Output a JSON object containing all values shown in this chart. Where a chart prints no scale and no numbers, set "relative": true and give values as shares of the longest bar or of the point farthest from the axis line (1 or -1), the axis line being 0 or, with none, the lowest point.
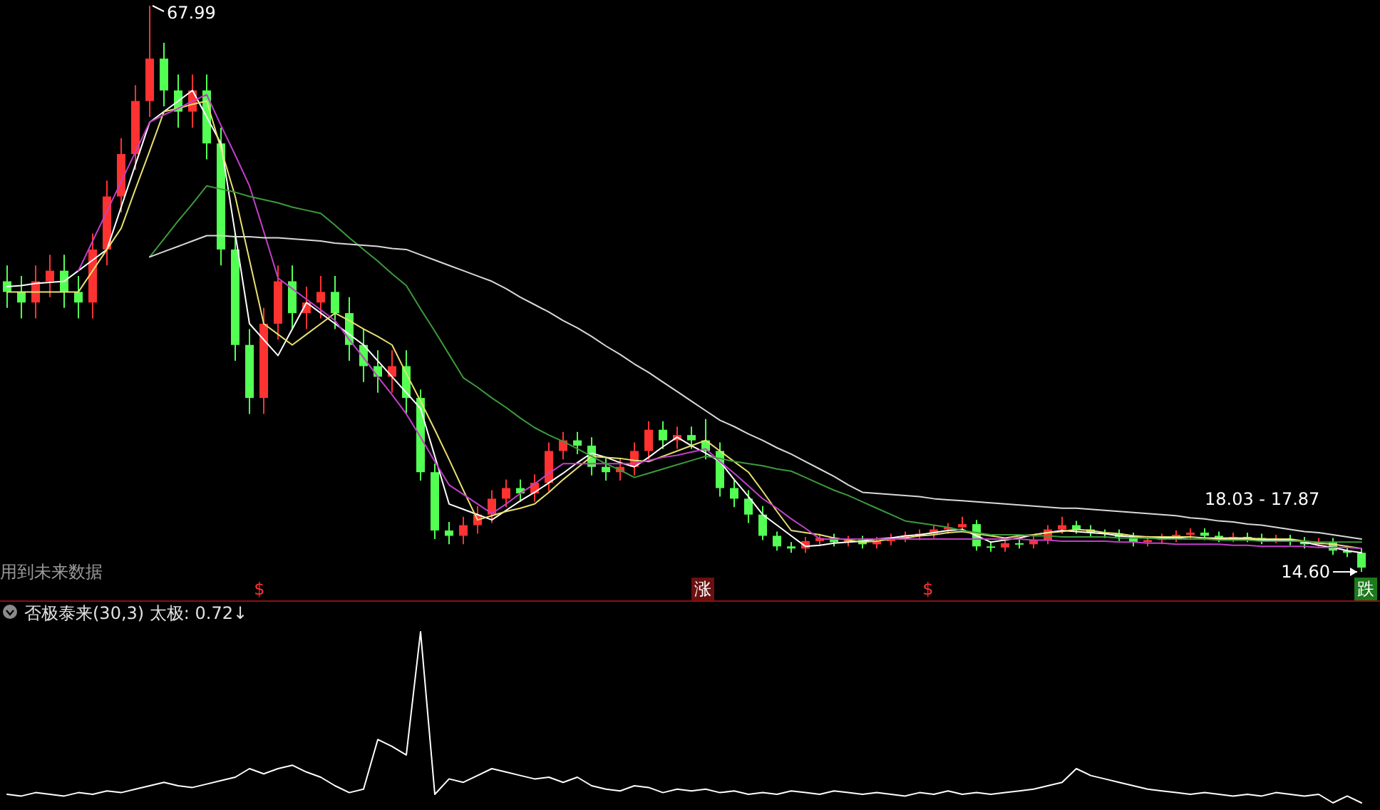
{
  "chart_data": [
    {
      "type": "candlestick",
      "categories": [
        null,
        null,
        null,
        null,
        null,
        null,
        null,
        null,
        null,
        null,
        null,
        null,
        null,
        null,
        null,
        null,
        null,
        null,
        null,
        null,
        null,
        null,
        null,
        null,
        null,
        null,
        null,
        null,
        null,
        null,
        null,
        null,
        null,
        null,
        null,
        null,
        null,
        null,
        null,
        null,
        null,
        null,
        null,
        null,
        null,
        null,
        null,
        null,
        null,
        null,
        null,
        null,
        null,
        null,
        null,
        null,
        null,
        null,
        null,
        null,
        null,
        null,
        null,
        null,
        null,
        null,
        null,
        null,
        null,
        null,
        null,
        null,
        null,
        null,
        null,
        null,
        null,
        null,
        null,
        null,
        null,
        null,
        null,
        null,
        null,
        null,
        null,
        null,
        null,
        null,
        null,
        null,
        null,
        null,
        null,
        null
      ],
      "ohlc": [
        [
          42,
          43.5,
          39.5,
          41
        ],
        [
          41,
          42.5,
          38.5,
          40
        ],
        [
          40,
          43.5,
          38.5,
          42
        ],
        [
          42,
          44.5,
          40.5,
          43
        ],
        [
          43,
          44.5,
          39.5,
          41
        ],
        [
          41,
          42.5,
          38.5,
          40
        ],
        [
          40,
          46.5,
          38.5,
          45
        ],
        [
          45,
          51.5,
          43.5,
          50
        ],
        [
          50,
          55.5,
          48.5,
          54
        ],
        [
          54,
          60.5,
          52.5,
          59
        ],
        [
          59,
          67.99,
          57.5,
          63
        ],
        [
          63,
          64.5,
          58.5,
          60
        ],
        [
          60,
          61.5,
          56.5,
          58
        ],
        [
          58,
          61.5,
          56.5,
          60
        ],
        [
          60,
          61.5,
          53.5,
          55
        ],
        [
          55,
          56.5,
          43.5,
          45
        ],
        [
          45,
          46.5,
          34.5,
          36
        ],
        [
          36,
          37.5,
          29.5,
          31
        ],
        [
          31,
          39.5,
          29.5,
          38
        ],
        [
          38,
          43.5,
          36.5,
          42
        ],
        [
          42,
          43.5,
          37.5,
          39
        ],
        [
          39,
          41.5,
          37.5,
          40
        ],
        [
          40,
          42.5,
          38.5,
          41
        ],
        [
          41,
          42.5,
          37.5,
          39
        ],
        [
          39,
          40.5,
          34.5,
          36
        ],
        [
          36,
          37.5,
          32.5,
          34
        ],
        [
          34,
          35.5,
          31.5,
          33
        ],
        [
          33,
          35.5,
          31.5,
          34
        ],
        [
          34,
          35.5,
          29.5,
          31
        ],
        [
          31,
          31.8,
          23.2,
          24
        ],
        [
          24,
          24.8,
          17.7,
          18.5
        ],
        [
          18.5,
          19.3,
          17.2,
          18
        ],
        [
          18,
          19.8,
          17.2,
          19
        ],
        [
          19,
          20.8,
          18.2,
          20
        ],
        [
          20,
          22.3,
          19.2,
          21.5
        ],
        [
          21.5,
          23.3,
          20.7,
          22.5
        ],
        [
          22.5,
          23.3,
          21.2,
          22
        ],
        [
          22,
          23.8,
          21.2,
          23
        ],
        [
          23,
          26.8,
          22.2,
          26
        ],
        [
          26,
          27.8,
          25.2,
          27
        ],
        [
          27,
          27.8,
          25.7,
          26.5
        ],
        [
          26.5,
          27.3,
          23.7,
          24.5
        ],
        [
          24.5,
          25.3,
          23.2,
          24
        ],
        [
          24,
          25.3,
          23.2,
          24.5
        ],
        [
          24.5,
          26.8,
          23.7,
          26
        ],
        [
          26,
          28.8,
          25.2,
          28
        ],
        [
          28,
          28.8,
          26.2,
          27
        ],
        [
          27,
          28.3,
          26.2,
          27.5
        ],
        [
          27.5,
          28.3,
          26.2,
          27
        ],
        [
          27,
          29,
          25.2,
          26
        ],
        [
          26,
          26.8,
          21.7,
          22.5
        ],
        [
          22.5,
          23.3,
          20.7,
          21.5
        ],
        [
          21.5,
          22.3,
          19.2,
          20
        ],
        [
          20,
          20.8,
          17.6,
          18
        ],
        [
          18,
          18.4,
          16.6,
          17
        ],
        [
          17,
          17.4,
          16.4,
          16.8
        ],
        [
          16.8,
          17.9,
          16.4,
          17.5
        ],
        [
          17.5,
          18.2,
          17.1,
          17.8
        ],
        [
          17.8,
          18.2,
          17,
          17.4
        ],
        [
          17.4,
          18,
          17,
          17.6
        ],
        [
          17.6,
          18,
          16.8,
          17.2
        ],
        [
          17.2,
          17.9,
          16.8,
          17.5
        ],
        [
          17.5,
          18.2,
          17.1,
          17.8
        ],
        [
          17.8,
          18.4,
          17.4,
          18
        ],
        [
          18,
          18.6,
          17.6,
          18.2
        ],
        [
          18.2,
          19,
          17.8,
          18.6
        ],
        [
          18.6,
          19.2,
          18.2,
          18.8
        ],
        [
          18.8,
          19.8,
          18.4,
          19.1
        ],
        [
          19.1,
          19.5,
          16.6,
          17
        ],
        [
          17,
          17.4,
          16.5,
          16.9
        ],
        [
          16.9,
          17.7,
          16.5,
          17.3
        ],
        [
          17.3,
          17.7,
          16.8,
          17.2
        ],
        [
          17.2,
          18,
          16.8,
          17.6
        ],
        [
          17.6,
          19,
          17.2,
          18.6
        ],
        [
          18.6,
          19.8,
          18.2,
          19
        ],
        [
          19,
          19.4,
          18.2,
          18.6
        ],
        [
          18.6,
          19,
          17.9,
          18.3
        ],
        [
          18.3,
          18.6,
          17.8,
          18.2
        ],
        [
          18.2,
          18.6,
          17.5,
          17.9
        ],
        [
          17.9,
          18.3,
          17,
          17.4
        ],
        [
          17.4,
          18,
          17,
          17.6
        ],
        [
          17.6,
          18.2,
          17.2,
          17.8
        ],
        [
          17.8,
          18.5,
          17.4,
          18.1
        ],
        [
          18.1,
          18.7,
          17.7,
          18.3
        ],
        [
          18.3,
          18.7,
          17.6,
          18
        ],
        [
          18,
          18.4,
          17.4,
          17.8
        ],
        [
          17.8,
          18.3,
          17.4,
          17.9
        ],
        [
          17.9,
          18.3,
          17.4,
          17.8
        ],
        [
          17.8,
          18.2,
          17.2,
          17.6
        ],
        [
          17.6,
          18.1,
          17.3,
          17.7
        ],
        [
          17.7,
          18.1,
          17.1,
          17.5
        ],
        [
          17.5,
          17.9,
          16.8,
          17.2
        ],
        [
          17.2,
          17.8,
          17,
          17.4
        ],
        [
          17.4,
          17.8,
          16.2,
          16.6
        ],
        [
          16.6,
          17,
          16,
          16.4
        ],
        [
          16.4,
          16.8,
          14.6,
          15
        ]
      ],
      "series": [
        {
          "type": "line",
          "color": "#ffffff",
          "values": [
            41.5,
            41.6,
            41.8,
            41.9,
            42,
            43,
            44,
            45,
            49,
            53,
            57,
            58,
            59,
            60,
            57.5,
            55,
            46.5,
            38,
            36.5,
            35,
            37.5,
            40,
            39,
            38,
            37,
            36,
            34.5,
            33,
            31.5,
            30,
            25.5,
            21,
            20.5,
            20,
            19.5,
            20.4,
            21.3,
            22.1,
            23,
            23.9,
            24.9,
            25.8,
            25.4,
            24.9,
            24.5,
            25.4,
            26.4,
            27.3,
            26.5,
            25.8,
            25,
            23.3,
            21.7,
            20,
            19,
            18,
            17,
            17.1,
            17.3,
            17.4,
            17.5,
            17.7,
            17.8,
            18,
            18.1,
            18.3,
            18.5,
            18.6,
            18,
            17.4,
            17.6,
            17.8,
            18.1,
            18.3,
            18.5,
            18.4,
            18.3,
            18.2,
            18,
            17.9,
            17.8,
            17.8,
            17.8,
            17.7,
            17.7,
            17.7,
            17.7,
            17.7,
            17.6,
            17.6,
            17.6,
            17.4,
            17.1,
            16.9,
            16.6,
            16.4
          ]
        },
        {
          "type": "line",
          "color": "#e8e070",
          "values": [
            41,
            41,
            41,
            41,
            41,
            41,
            43,
            45,
            47,
            50.7,
            54.3,
            58,
            58.3,
            58.7,
            59,
            54.5,
            50,
            44,
            38,
            37,
            36,
            37,
            38,
            39,
            38.3,
            37.5,
            36.8,
            36,
            33.3,
            30.7,
            28,
            25.2,
            22.3,
            19.5,
            19.9,
            20.3,
            20.6,
            21,
            22.1,
            23.3,
            24.4,
            25.5,
            25.4,
            25.3,
            25.1,
            25,
            25.5,
            26,
            26.5,
            27,
            26,
            25,
            24,
            22.2,
            20.3,
            18.5,
            18.3,
            18.1,
            17.8,
            17.6,
            17.4,
            17.5,
            17.7,
            17.8,
            18,
            18.1,
            18.3,
            18.4,
            18.2,
            18,
            17.8,
            18,
            18.1,
            18.3,
            18.4,
            18.6,
            18.5,
            18.3,
            18.2,
            18,
            17.9,
            17.9,
            17.9,
            17.9,
            17.8,
            17.8,
            17.8,
            17.8,
            17.7,
            17.7,
            17.7,
            17.5,
            17.3,
            17.2,
            17,
            16.8
          ]
        },
        {
          "type": "line",
          "color": "#c040c8",
          "values": [
            null,
            null,
            null,
            null,
            null,
            43,
            45.8,
            48.6,
            51.4,
            54.2,
            57,
            57.7,
            58.3,
            59,
            59.6,
            56.7,
            53.9,
            51,
            46.7,
            42.3,
            41.3,
            40.3,
            39.3,
            38.3,
            36.5,
            34.8,
            33,
            31.3,
            29.5,
            27.3,
            25,
            22.8,
            21.9,
            21,
            20.1,
            21,
            22,
            22.9,
            23.9,
            24.8,
            24.8,
            24.8,
            24.8,
            24.8,
            24.8,
            25.1,
            25.4,
            25.6,
            25.9,
            26.2,
            25,
            23.9,
            22.7,
            21.5,
            20.6,
            19.6,
            18.7,
            17.7,
            17.7,
            17.7,
            17.7,
            17.7,
            17.7,
            17.7,
            17.7,
            17.7,
            17.7,
            17.7,
            17.7,
            17.7,
            17.7,
            17.7,
            17.6,
            17.6,
            17.5,
            17.5,
            17.5,
            17.5,
            17.4,
            17.4,
            17.3,
            17.3,
            17.2,
            17.2,
            17.2,
            17.2,
            17.1,
            17.1,
            17,
            17,
            17,
            17,
            16.9,
            16.9,
            16.9,
            16.8
          ]
        },
        {
          "type": "line",
          "color": "#3c9a3c",
          "values": [
            null,
            null,
            null,
            null,
            null,
            null,
            null,
            null,
            null,
            null,
            44.3,
            46,
            47.7,
            49.3,
            51,
            50.7,
            50.4,
            50,
            49.7,
            49.4,
            49,
            48.7,
            48.4,
            47.3,
            46.1,
            45,
            43.9,
            42.7,
            41.6,
            39.4,
            37.3,
            35.1,
            32.9,
            32,
            31,
            30.1,
            29.1,
            28.2,
            27.5,
            26.9,
            26.2,
            25.5,
            24.8,
            24.2,
            23.5,
            23.9,
            24.3,
            24.7,
            25.1,
            25.5,
            25.3,
            25,
            24.8,
            24.6,
            24.3,
            24.1,
            23.5,
            22.9,
            22.3,
            21.8,
            21.2,
            20.6,
            20,
            19.4,
            19.2,
            19,
            18.8,
            18.5,
            18.3,
            18.1,
            18.1,
            18.1,
            18,
            18,
            17.9,
            17.9,
            17.9,
            17.9,
            17.8,
            17.8,
            17.8,
            17.7,
            17.7,
            17.7,
            17.7,
            17.6,
            17.6,
            17.6,
            17.5,
            17.5,
            17.5,
            17.5,
            17.4,
            17.4,
            17.4,
            17.4
          ]
        },
        {
          "type": "line",
          "color": "#d8d8d8",
          "values": [
            null,
            null,
            null,
            null,
            null,
            null,
            null,
            null,
            null,
            null,
            44.3,
            44.8,
            45.3,
            45.8,
            46.3,
            46.3,
            46.2,
            46.2,
            46.1,
            46.1,
            46,
            45.9,
            45.8,
            45.6,
            45.5,
            45.4,
            45.3,
            45.1,
            45,
            44.5,
            44,
            43.5,
            43,
            42.5,
            42,
            41.3,
            40.5,
            39.8,
            39.1,
            38.3,
            37.6,
            36.8,
            35.9,
            35.1,
            34.2,
            33.4,
            32.5,
            31.6,
            30.7,
            29.8,
            28.9,
            28.3,
            27.6,
            27,
            26.3,
            25.7,
            25,
            24.3,
            23.6,
            22.8,
            22.1,
            22,
            21.9,
            21.8,
            21.7,
            21.5,
            21.4,
            21.3,
            21.2,
            21.1,
            21,
            20.9,
            20.8,
            20.7,
            20.6,
            20.6,
            20.5,
            20.4,
            20.3,
            20.2,
            20.1,
            20,
            19.9,
            19.7,
            19.6,
            19.4,
            19.3,
            19.1,
            19,
            18.8,
            18.6,
            18.4,
            18.3,
            18.1,
            17.9,
            17.7
          ]
        }
      ],
      "annotations": [
        "67.99",
        "14.60",
        "18.03 - 17.87",
        "用到未来数据",
        "$",
        "涨",
        "$",
        "跌"
      ]
    },
    {
      "type": "line",
      "title": "否极泰来(30,3)  太极: 0.72↓",
      "relative": true,
      "categories": [
        null,
        null,
        null,
        null,
        null,
        null,
        null,
        null,
        null,
        null,
        null,
        null,
        null,
        null,
        null,
        null,
        null,
        null,
        null,
        null,
        null,
        null,
        null,
        null,
        null,
        null,
        null,
        null,
        null,
        null,
        null,
        null,
        null,
        null,
        null,
        null,
        null,
        null,
        null,
        null,
        null,
        null,
        null,
        null,
        null,
        null,
        null,
        null,
        null,
        null,
        null,
        null,
        null,
        null,
        null,
        null,
        null,
        null,
        null,
        null,
        null,
        null,
        null,
        null,
        null,
        null,
        null,
        null,
        null,
        null,
        null,
        null,
        null,
        null,
        null,
        null,
        null,
        null,
        null,
        null,
        null,
        null,
        null,
        null,
        null,
        null,
        null,
        null,
        null,
        null,
        null,
        null,
        null,
        null,
        null,
        null
      ],
      "series": [
        {
          "color": "#ffffff",
          "values": [
            0.05,
            0.04,
            0.06,
            0.05,
            0.04,
            0.06,
            0.05,
            0.07,
            0.06,
            0.08,
            0.1,
            0.12,
            0.1,
            0.09,
            0.11,
            0.13,
            0.15,
            0.2,
            0.17,
            0.2,
            0.22,
            0.18,
            0.15,
            0.1,
            0.06,
            0.08,
            0.37,
            0.33,
            0.28,
            1,
            0.05,
            0.14,
            0.12,
            0.16,
            0.2,
            0.18,
            0.16,
            0.14,
            0.15,
            0.12,
            0.15,
            0.1,
            0.08,
            0.07,
            0.1,
            0.09,
            0.06,
            0.08,
            0.07,
            0.08,
            0.06,
            0.07,
            0.05,
            0.06,
            0.05,
            0.07,
            0.06,
            0.05,
            0.07,
            0.06,
            0.05,
            0.06,
            0.05,
            0.04,
            0.06,
            0.05,
            0.07,
            0.05,
            0.06,
            0.05,
            0.06,
            0.07,
            0.08,
            0.1,
            0.12,
            0.2,
            0.16,
            0.14,
            0.12,
            0.1,
            0.08,
            0.07,
            0.06,
            0.05,
            0.06,
            0.05,
            0.04,
            0.05,
            0.04,
            0.06,
            0.05,
            0.04,
            0.05,
            0,
            0.04,
            0
          ]
        }
      ]
    }
  ]
}
